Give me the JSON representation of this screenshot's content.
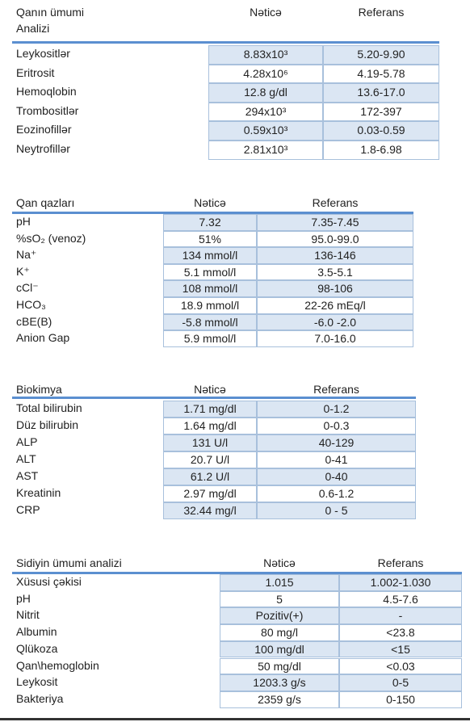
{
  "tables": [
    {
      "headers": [
        "Qanın ümumi Analizi",
        "Nəticə",
        "Referans"
      ],
      "rows": [
        [
          "Leykositlər",
          "8.83x10³",
          "5.20-9.90"
        ],
        [
          "Eritrosit",
          "4.28x10⁶",
          "4.19-5.78"
        ],
        [
          "Hemoqlobin",
          "12.8 g/dl",
          "13.6-17.0"
        ],
        [
          "Trombositlər",
          "294x10³",
          "172-397"
        ],
        [
          "Eozinofillər",
          "0.59x10³",
          "0.03-0.59"
        ],
        [
          "Neytrofillər",
          "2.81x10³",
          "1.8-6.98"
        ]
      ]
    },
    {
      "headers": [
        "Qan qazları",
        "Nəticə",
        "Referans"
      ],
      "rows": [
        [
          "pH",
          "7.32",
          "7.35-7.45"
        ],
        [
          "%sO₂ (venoz)",
          "51%",
          "95.0-99.0"
        ],
        [
          "Na⁺",
          "134 mmol/l",
          "136-146"
        ],
        [
          "K⁺",
          "5.1 mmol/l",
          "3.5-5.1"
        ],
        [
          "cCl⁻",
          "108 mmol/l",
          "98-106"
        ],
        [
          "HCO₃",
          "18.9 mmol/l",
          "22-26 mEq/l"
        ],
        [
          "cBE(B)",
          "-5.8 mmol/l",
          "-6.0 -2.0"
        ],
        [
          "Anion Gap",
          "5.9 mmol/l",
          "7.0-16.0"
        ]
      ]
    },
    {
      "headers": [
        "Biokimya",
        "Nəticə",
        "Referans"
      ],
      "rows": [
        [
          "Total bilirubin",
          "1.71 mg/dl",
          "0-1.2"
        ],
        [
          "Düz bilirubin",
          "1.64 mg/dl",
          "0-0.3"
        ],
        [
          "ALP",
          "131 U/l",
          "40-129"
        ],
        [
          "ALT",
          "20.7 U/l",
          "0-41"
        ],
        [
          "AST",
          "61.2 U/l",
          "0-40"
        ],
        [
          "Kreatinin",
          "2.97 mg/dl",
          "0.6-1.2"
        ],
        [
          "CRP",
          "32.44 mg/l",
          "0 - 5"
        ]
      ]
    },
    {
      "headers": [
        "Sidiyin ümumi analizi",
        "Nəticə",
        "Referans"
      ],
      "rows": [
        [
          "Xüsusi çəkisi",
          "1.015",
          "1.002-1.030"
        ],
        [
          "pH",
          "5",
          "4.5-7.6"
        ],
        [
          "Nitrit",
          "Pozitiv(+)",
          "-"
        ],
        [
          "Albumin",
          "80 mg/l",
          "<23.8"
        ],
        [
          "Qlükoza",
          "100 mg/dl",
          "<15"
        ],
        [
          "Qan\\hemoglobin",
          "50 mg/dl",
          "<0.03"
        ],
        [
          "Leykosit",
          "1203.3 g/s",
          "0-5"
        ],
        [
          "Bakteriya",
          "2359 g/s",
          "0-150"
        ]
      ]
    }
  ]
}
